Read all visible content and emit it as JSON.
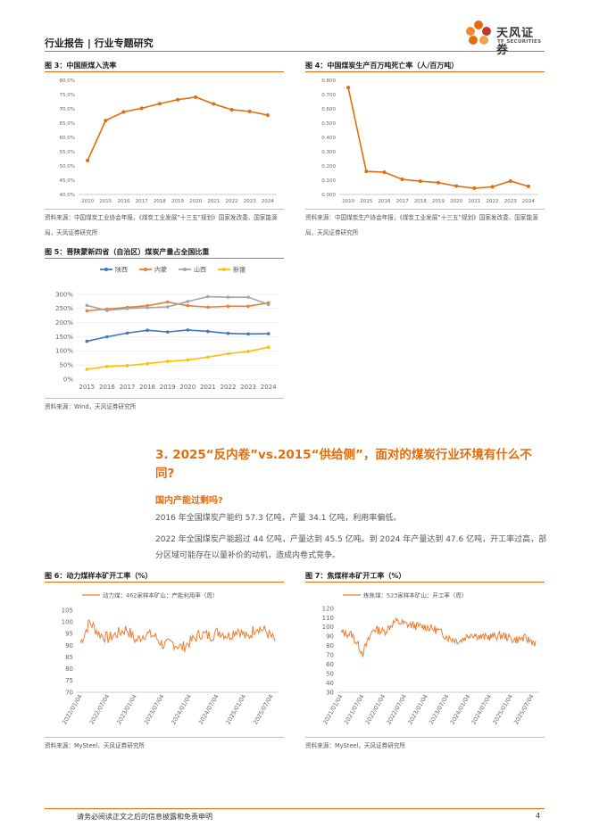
{
  "header": {
    "title": "行业报告 | 行业专题研究",
    "brand_name": "天风证券",
    "brand_sub": "TF SECURITIES",
    "accent_color": "#e46c0a"
  },
  "fig3": {
    "title": "图 3：中国原煤入洗率",
    "source": "资料来源：中国煤炭工业协会年报，《煤炭工业发展“十三五”规划》国家发改委、国家能源局，天风证券研究所"
  },
  "fig4": {
    "title": "图 4：中国煤炭生产百万吨死亡率（人/百万吨）",
    "source": "资料来源：中国煤炭生产协会年报，《煤炭工业发展“十三五”规划》国家发改委、国家能源局，天风证券研究所"
  },
  "fig5": {
    "title": "图 5：晋陕蒙新四省（自治区）煤炭产量占全国比重",
    "source": "资料来源：Wind，天风证券研究所"
  },
  "fig6": {
    "title": "图 6：动力煤样本矿开工率（%）",
    "source": "资料来源：MySteel，天风证券研究所"
  },
  "fig7": {
    "title": "图 7：焦煤样本矿开工率（%）",
    "source": "资料来源：MySteel，天风证券研究所"
  },
  "section": {
    "heading": "3. 2025“反内卷”vs.2015“供给侧”，面对的煤炭行业环境有什么不同?",
    "subheading": "国内产能过剩吗?",
    "para1": "2016 年全国煤炭产能约 57.3 亿吨，产量 34.1 亿吨，利用率偏低。",
    "para2": "2022 年全国煤炭产能超过 44 亿吨，产量达到 45.5 亿吨。到 2024 年产量达到 47.6 亿吨，开工率过高，部分区域可能存在以量补价的动机，造成内卷式竞争。"
  },
  "footer": {
    "note": "请务必阅读正文之后的信息披露和免责申明",
    "page": "4"
  },
  "chart_data": [
    {
      "id": "fig3",
      "type": "line",
      "color": "#e46c0a",
      "categories": [
        "2010",
        "2015",
        "2016",
        "2017",
        "2018",
        "2019",
        "2020",
        "2021",
        "2022",
        "2023",
        "2024"
      ],
      "values": [
        51.9,
        65.9,
        68.9,
        70.2,
        71.8,
        73.2,
        74.1,
        71.7,
        69.7,
        69.1,
        67.8
      ],
      "yticks": [
        "80.0%",
        "75.0%",
        "70.0%",
        "65.0%",
        "60.0%",
        "55.0%",
        "50.0%",
        "45.0%",
        "40.0%"
      ],
      "ylim": [
        40,
        80
      ]
    },
    {
      "id": "fig4",
      "type": "line",
      "color": "#e46c0a",
      "categories": [
        "2010",
        "2015",
        "2016",
        "2017",
        "2018",
        "2019",
        "2020",
        "2021",
        "2022",
        "2023",
        "2024"
      ],
      "values": [
        0.749,
        0.162,
        0.156,
        0.106,
        0.093,
        0.083,
        0.059,
        0.044,
        0.054,
        0.094,
        0.057
      ],
      "yticks": [
        "0.800",
        "0.700",
        "0.600",
        "0.500",
        "0.400",
        "0.300",
        "0.200",
        "0.100",
        "0.000"
      ],
      "ylim": [
        0,
        0.8
      ]
    },
    {
      "id": "fig5",
      "type": "line",
      "categories": [
        "2015",
        "2016",
        "2017",
        "2018",
        "2019",
        "2020",
        "2021",
        "2022",
        "2023",
        "2024"
      ],
      "yticks": [
        "300%",
        "250%",
        "200%",
        "150%",
        "100%",
        "50%",
        "0%"
      ],
      "ylim": [
        0,
        300
      ],
      "series": [
        {
          "name": "陕西",
          "color": "#4472c4",
          "values": [
            134,
            150,
            163,
            173,
            167,
            174,
            169,
            162,
            160,
            161
          ]
        },
        {
          "name": "内蒙",
          "color": "#ed7d31",
          "values": [
            242,
            248,
            254,
            260,
            273,
            260,
            255,
            258,
            258,
            270
          ]
        },
        {
          "name": "山西",
          "color": "#a5a5a5",
          "values": [
            261,
            243,
            250,
            253,
            256,
            275,
            292,
            290,
            290,
            264
          ]
        },
        {
          "name": "新疆",
          "color": "#ffc000",
          "values": [
            35,
            45,
            48,
            55,
            63,
            68,
            78,
            90,
            98,
            113
          ]
        }
      ]
    },
    {
      "id": "fig6",
      "type": "line",
      "color": "#ed7d31",
      "legend": "动力煤：462家样本矿山：产能利用率（周）",
      "xticks": [
        "2022/01/04",
        "2022/07/04",
        "2023/01/04",
        "2023/07/04",
        "2024/01/04",
        "2024/07/04",
        "2025/01/04",
        "2025/07/04"
      ],
      "yticks": [
        "105",
        "100",
        "95",
        "90",
        "85",
        "80",
        "75",
        "70"
      ],
      "ylim": [
        70,
        105
      ],
      "x": [
        "2022/01",
        "2022/03",
        "2022/05",
        "2022/07",
        "2022/09",
        "2022/11",
        "2023/01",
        "2023/03",
        "2023/05",
        "2023/07",
        "2023/09",
        "2023/11",
        "2024/01",
        "2024/03",
        "2024/05",
        "2024/07",
        "2024/09",
        "2024/11",
        "2025/01",
        "2025/03",
        "2025/05",
        "2025/07"
      ],
      "values": [
        91,
        100,
        95,
        93,
        95,
        97,
        92,
        95,
        94,
        90,
        91,
        89,
        92,
        95,
        94,
        96,
        94,
        97,
        93,
        98,
        96,
        92
      ]
    },
    {
      "id": "fig7",
      "type": "line",
      "color": "#ed7d31",
      "legend": "炼焦煤：523家样本矿山：开工率（周）",
      "xticks": [
        "2021/01/04",
        "2021/07/04",
        "2022/01/04",
        "2022/07/04",
        "2023/01/04",
        "2023/07/04",
        "2024/01/04",
        "2024/07/04",
        "2025/01/04",
        "2025/07/04"
      ],
      "yticks": [
        "120",
        "110",
        "100",
        "90",
        "80",
        "70",
        "60",
        "50",
        "40",
        "30"
      ],
      "ylim": [
        30,
        120
      ],
      "x": [
        "2021/01",
        "2021/04",
        "2021/07",
        "2021/10",
        "2022/01",
        "2022/04",
        "2022/07",
        "2022/10",
        "2023/01",
        "2023/04",
        "2023/07",
        "2023/10",
        "2024/01",
        "2024/04",
        "2024/07",
        "2024/10",
        "2025/01",
        "2025/04",
        "2025/07"
      ],
      "values": [
        94,
        92,
        72,
        98,
        95,
        106,
        103,
        101,
        100,
        96,
        88,
        85,
        93,
        89,
        90,
        91,
        86,
        88,
        83
      ]
    }
  ]
}
